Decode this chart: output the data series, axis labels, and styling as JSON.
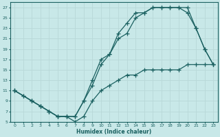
{
  "xlabel": "Humidex (Indice chaleur)",
  "bg_color": "#c8e8e8",
  "line_color": "#1a6060",
  "grid_color": "#b8d8d8",
  "xlim": [
    -0.5,
    23.5
  ],
  "ylim": [
    5,
    28
  ],
  "xticks": [
    0,
    1,
    2,
    3,
    4,
    5,
    6,
    7,
    8,
    9,
    10,
    11,
    12,
    13,
    14,
    15,
    16,
    17,
    18,
    19,
    20,
    21,
    22,
    23
  ],
  "yticks": [
    5,
    7,
    9,
    11,
    13,
    15,
    17,
    19,
    21,
    23,
    25,
    27
  ],
  "line1_x": [
    0,
    1,
    2,
    3,
    4,
    5,
    6,
    7,
    8,
    9,
    10,
    11,
    12,
    13,
    14,
    15,
    16,
    17,
    18,
    19,
    20,
    21,
    22,
    23
  ],
  "line1_y": [
    11,
    10,
    9,
    8,
    7,
    6,
    6,
    6,
    9,
    12,
    16,
    18,
    22,
    24,
    26,
    26,
    27,
    27,
    27,
    27,
    27,
    23,
    19,
    16
  ],
  "line2_x": [
    0,
    2,
    3,
    4,
    5,
    6,
    7,
    8,
    9,
    10,
    11,
    12,
    13,
    14,
    15,
    16,
    17,
    18,
    19,
    20,
    21,
    22,
    23
  ],
  "line2_y": [
    11,
    9,
    8,
    7,
    6,
    6,
    6,
    9,
    13,
    17,
    18,
    21,
    22,
    25,
    26,
    27,
    27,
    27,
    27,
    26,
    23,
    19,
    16
  ],
  "line3_x": [
    0,
    1,
    2,
    3,
    4,
    5,
    6,
    7,
    8,
    9,
    10,
    11,
    12,
    13,
    14,
    15,
    16,
    17,
    18,
    19,
    20,
    21,
    22,
    23
  ],
  "line3_y": [
    11,
    10,
    9,
    8,
    7,
    6,
    6,
    5,
    6,
    9,
    11,
    12,
    13,
    14,
    14,
    15,
    15,
    15,
    15,
    15,
    16,
    16,
    16,
    16
  ]
}
